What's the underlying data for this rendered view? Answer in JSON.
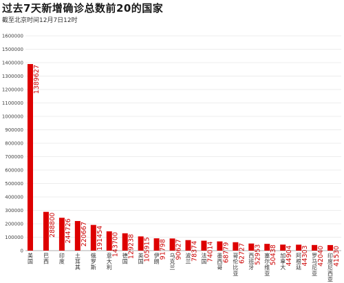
{
  "header": {
    "title": "过去7天新增确诊总数前20的国家",
    "subtitle": "截至北京时间12月7日12时"
  },
  "colors": {
    "bar": "#dd0000",
    "label": "#cc0000",
    "grid": "#e6e6e6"
  },
  "chart_data": {
    "type": "bar",
    "title": "过去7天新增确诊总数前20的国家",
    "subtitle": "截至北京时间12月7日12时",
    "xlabel": "",
    "ylabel": "",
    "ylim": [
      0,
      1600000
    ],
    "yticks": [
      0,
      100000,
      200000,
      300000,
      400000,
      500000,
      600000,
      700000,
      800000,
      900000,
      1000000,
      1100000,
      1200000,
      1300000,
      1400000,
      1500000,
      1600000
    ],
    "grid": true,
    "categories": [
      "美国",
      "巴西",
      "印度",
      "土耳其",
      "俄罗斯",
      "意大利",
      "德国",
      "英国",
      "伊朗",
      "乌克兰",
      "波兰",
      "法国",
      "墨西哥",
      "哥伦比亚",
      "西班牙",
      "塞尔维亚",
      "加拿大",
      "阿根廷",
      "罗马尼亚",
      "印度尼西亚"
    ],
    "values": [
      1389627,
      288800,
      244726,
      220667,
      191454,
      143700,
      129238,
      105915,
      91798,
      90627,
      78374,
      74014,
      68779,
      62727,
      52953,
      50438,
      44904,
      44303,
      42040,
      41530
    ]
  }
}
